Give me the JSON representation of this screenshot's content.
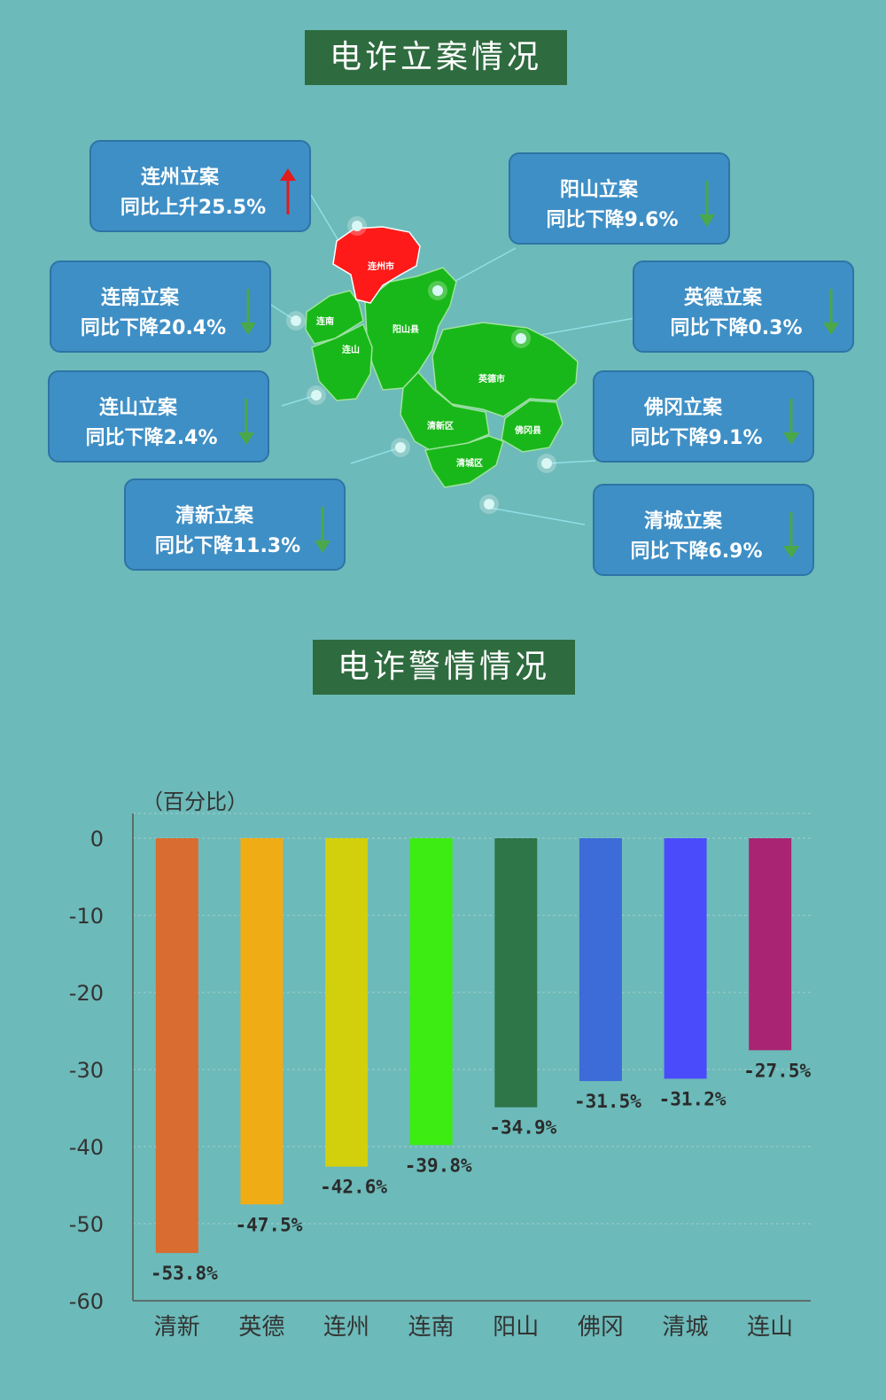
{
  "banners": {
    "cases_title": "电诈立案情况",
    "alerts_title": "电诈警情情况"
  },
  "map": {
    "district_labels": [
      "连州市",
      "连南",
      "连山",
      "阳山县",
      "英德市",
      "清新区",
      "佛冈县",
      "清城区"
    ],
    "callouts": [
      {
        "name": "连州立案",
        "change": "同比上升25.5%",
        "direction": "up"
      },
      {
        "name": "阳山立案",
        "change": "同比下降9.6%",
        "direction": "down"
      },
      {
        "name": "连南立案",
        "change": "同比下降20.4%",
        "direction": "down"
      },
      {
        "name": "英德立案",
        "change": "同比下降0.3%",
        "direction": "down"
      },
      {
        "name": "连山立案",
        "change": "同比下降2.4%",
        "direction": "down"
      },
      {
        "name": "佛冈立案",
        "change": "同比下降9.1%",
        "direction": "down"
      },
      {
        "name": "清新立案",
        "change": "同比下降11.3%",
        "direction": "down"
      },
      {
        "name": "清城立案",
        "change": "同比下降6.9%",
        "direction": "down"
      }
    ],
    "colors": {
      "highlight": "#ff1a1a",
      "region": "#19b81a",
      "up_arrow": "#e21b1b",
      "down_arrow": "#4aa84a"
    }
  },
  "chart_data": {
    "type": "bar",
    "unit_label": "（百分比）",
    "categories": [
      "清新",
      "英德",
      "连州",
      "连南",
      "阳山",
      "佛冈",
      "清城",
      "连山"
    ],
    "values": [
      -53.8,
      -47.5,
      -42.6,
      -39.8,
      -34.9,
      -31.5,
      -31.2,
      -27.5
    ],
    "value_labels": [
      "-53.8%",
      "-47.5%",
      "-42.6%",
      "-39.8%",
      "-34.9%",
      "-31.5%",
      "-31.2%",
      "-27.5%"
    ],
    "colors": [
      "#d96c30",
      "#f0ac14",
      "#d2cf0c",
      "#3cec12",
      "#2e7548",
      "#3d6bd8",
      "#4a4cfc",
      "#a92472"
    ],
    "yticks": [
      "0",
      "-10",
      "-20",
      "-30",
      "-40",
      "-50",
      "-60"
    ],
    "ylim": [
      -60,
      0
    ],
    "grid": true
  }
}
